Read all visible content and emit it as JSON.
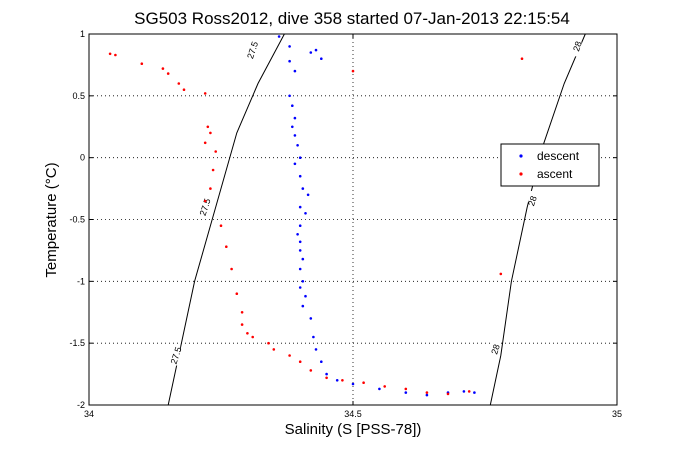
{
  "chart_data": {
    "type": "scatter",
    "title": "SG503 Ross2012, dive 358 started 07-Jan-2013 22:15:54",
    "xlabel": "Salinity (S [PSS-78])",
    "ylabel": "Temperature (°C)",
    "xlim": [
      34,
      35
    ],
    "ylim": [
      -2,
      1
    ],
    "grid": true,
    "legend_position": "right",
    "x_ticks": [
      "34",
      "34.5",
      "35"
    ],
    "y_ticks": [
      "1",
      "0.5",
      "0",
      "-0.5",
      "-1",
      "-1.5",
      "-2"
    ],
    "contour_lines": [
      {
        "label": "27.5",
        "points": [
          [
            34.37,
            1.0
          ],
          [
            34.32,
            0.6
          ],
          [
            34.28,
            0.2
          ],
          [
            34.24,
            -0.4
          ],
          [
            34.2,
            -1.0
          ],
          [
            34.17,
            -1.6
          ],
          [
            34.15,
            -2.0
          ]
        ],
        "label_positions": [
          [
            34.31,
            0.87
          ],
          [
            34.22,
            -0.4
          ],
          [
            34.165,
            -1.6
          ]
        ]
      },
      {
        "label": "28",
        "points": [
          [
            34.94,
            1.0
          ],
          [
            34.9,
            0.6
          ],
          [
            34.86,
            0.1
          ],
          [
            34.83,
            -0.4
          ],
          [
            34.8,
            -1.0
          ],
          [
            34.78,
            -1.6
          ],
          [
            34.76,
            -2.0
          ]
        ],
        "label_positions": [
          [
            34.925,
            0.9
          ],
          [
            34.84,
            -0.35
          ],
          [
            34.77,
            -1.55
          ]
        ]
      }
    ],
    "series": [
      {
        "name": "descent",
        "color": "#0000ff",
        "points": [
          [
            34.36,
            0.98
          ],
          [
            34.38,
            0.9
          ],
          [
            34.43,
            0.87
          ],
          [
            34.42,
            0.85
          ],
          [
            34.44,
            0.8
          ],
          [
            34.38,
            0.78
          ],
          [
            34.39,
            0.7
          ],
          [
            34.38,
            0.5
          ],
          [
            34.385,
            0.42
          ],
          [
            34.39,
            0.32
          ],
          [
            34.385,
            0.25
          ],
          [
            34.39,
            0.18
          ],
          [
            34.395,
            0.1
          ],
          [
            34.4,
            0.0
          ],
          [
            34.39,
            -0.05
          ],
          [
            34.4,
            -0.15
          ],
          [
            34.405,
            -0.25
          ],
          [
            34.415,
            -0.3
          ],
          [
            34.4,
            -0.4
          ],
          [
            34.41,
            -0.45
          ],
          [
            34.4,
            -0.55
          ],
          [
            34.395,
            -0.62
          ],
          [
            34.4,
            -0.68
          ],
          [
            34.4,
            -0.75
          ],
          [
            34.405,
            -0.82
          ],
          [
            34.4,
            -0.9
          ],
          [
            34.405,
            -1.0
          ],
          [
            34.4,
            -1.05
          ],
          [
            34.41,
            -1.12
          ],
          [
            34.405,
            -1.2
          ],
          [
            34.42,
            -1.3
          ],
          [
            34.425,
            -1.45
          ],
          [
            34.43,
            -1.55
          ],
          [
            34.44,
            -1.65
          ],
          [
            34.45,
            -1.75
          ],
          [
            34.47,
            -1.8
          ],
          [
            34.5,
            -1.83
          ],
          [
            34.55,
            -1.87
          ],
          [
            34.6,
            -1.9
          ],
          [
            34.64,
            -1.92
          ],
          [
            34.68,
            -1.9
          ],
          [
            34.71,
            -1.89
          ],
          [
            34.73,
            -1.9
          ]
        ]
      },
      {
        "name": "ascent",
        "color": "#ff0000",
        "points": [
          [
            34.04,
            0.84
          ],
          [
            34.05,
            0.83
          ],
          [
            34.1,
            0.76
          ],
          [
            34.14,
            0.72
          ],
          [
            34.15,
            0.68
          ],
          [
            34.17,
            0.6
          ],
          [
            34.18,
            0.55
          ],
          [
            34.22,
            0.52
          ],
          [
            34.225,
            0.25
          ],
          [
            34.23,
            0.2
          ],
          [
            34.22,
            0.12
          ],
          [
            34.24,
            0.05
          ],
          [
            34.235,
            -0.1
          ],
          [
            34.23,
            -0.25
          ],
          [
            34.22,
            -0.35
          ],
          [
            34.25,
            -0.55
          ],
          [
            34.26,
            -0.72
          ],
          [
            34.27,
            -0.9
          ],
          [
            34.28,
            -1.1
          ],
          [
            34.29,
            -1.25
          ],
          [
            34.29,
            -1.35
          ],
          [
            34.3,
            -1.42
          ],
          [
            34.34,
            -1.5
          ],
          [
            34.38,
            -1.6
          ],
          [
            34.4,
            -1.65
          ],
          [
            34.42,
            -1.72
          ],
          [
            34.45,
            -1.78
          ],
          [
            34.48,
            -1.8
          ],
          [
            34.52,
            -1.82
          ],
          [
            34.56,
            -1.85
          ],
          [
            34.6,
            -1.87
          ],
          [
            34.64,
            -1.9
          ],
          [
            34.68,
            -1.91
          ],
          [
            34.72,
            -1.89
          ],
          [
            34.78,
            -0.94
          ],
          [
            34.82,
            0.8
          ],
          [
            34.5,
            0.7
          ],
          [
            34.35,
            -1.55
          ],
          [
            34.31,
            -1.45
          ]
        ]
      }
    ]
  }
}
